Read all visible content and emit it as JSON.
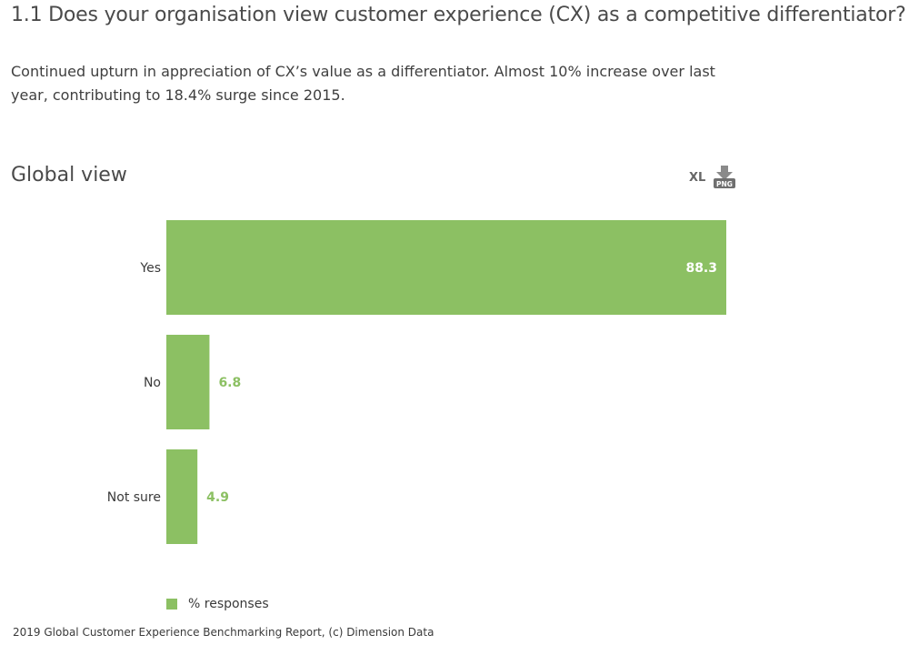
{
  "header": {
    "title": "1.1 Does your organisation view customer experience (CX) as a competitive differentiator?",
    "subtitle": "Continued upturn in appreciation of CX’s value as a differentiator. Almost 10% increase over last year, contributing to 18.4% surge since 2015."
  },
  "section": {
    "title": "Global view"
  },
  "export": {
    "xl_label": "XL",
    "png_label": "PNG"
  },
  "colors": {
    "bar": "#8cc063",
    "inside_label": "#ffffff",
    "outside_label": "#8cc063"
  },
  "chart_data": {
    "type": "bar",
    "orientation": "horizontal",
    "categories": [
      "Yes",
      "No",
      "Not sure"
    ],
    "series": [
      {
        "name": "% responses",
        "values": [
          88.3,
          6.8,
          4.9
        ]
      }
    ],
    "data_labels": [
      "88.3",
      "6.8",
      "4.9"
    ],
    "xlim": [
      0,
      88.3
    ],
    "grid": false,
    "legend": "bottom-left"
  },
  "legend": {
    "label": "% responses"
  },
  "footer": {
    "source": "2019 Global Customer Experience Benchmarking Report, (c) Dimension Data"
  }
}
